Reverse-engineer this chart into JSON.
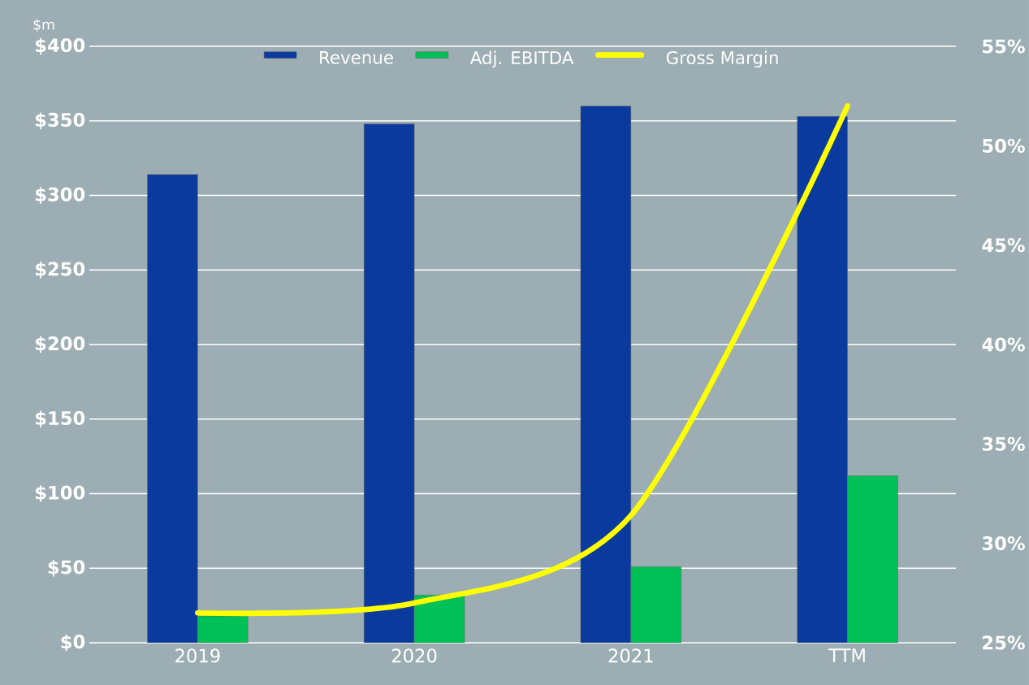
{
  "chart_data": {
    "type": "bar",
    "ylabel": "$m",
    "categories": [
      "2019",
      "2020",
      "2021",
      "TTM"
    ],
    "series": [
      {
        "name": "Revenue",
        "color": "#0a3a9e",
        "values": [
          314,
          348,
          360,
          353
        ]
      },
      {
        "name": "Adj. EBITDA",
        "color": "#00c058",
        "values": [
          18,
          32,
          51,
          112
        ]
      },
      {
        "name": "Gross Margin",
        "color": "#ffff00",
        "type": "line",
        "axis": "y2",
        "values": [
          26.5,
          27.0,
          31.4,
          52.0
        ]
      }
    ],
    "ylim": [
      0,
      400
    ],
    "yticks": [
      {
        "value": 0,
        "label": "$0"
      },
      {
        "value": 50,
        "label": "$50"
      },
      {
        "value": 100,
        "label": "$100"
      },
      {
        "value": 150,
        "label": "$150"
      },
      {
        "value": 200,
        "label": "$200"
      },
      {
        "value": 250,
        "label": "$250"
      },
      {
        "value": 300,
        "label": "$300"
      },
      {
        "value": 350,
        "label": "$350"
      },
      {
        "value": 400,
        "label": "$400"
      }
    ],
    "y2lim": [
      25,
      55
    ],
    "y2ticks": [
      {
        "value": 25,
        "label": "25%"
      },
      {
        "value": 30,
        "label": "30%"
      },
      {
        "value": 35,
        "label": "35%"
      },
      {
        "value": 40,
        "label": "40%"
      },
      {
        "value": 45,
        "label": "45%"
      },
      {
        "value": 50,
        "label": "50%"
      },
      {
        "value": 55,
        "label": "55%"
      }
    ],
    "grid": "y",
    "legend": "top",
    "marker": "none"
  }
}
